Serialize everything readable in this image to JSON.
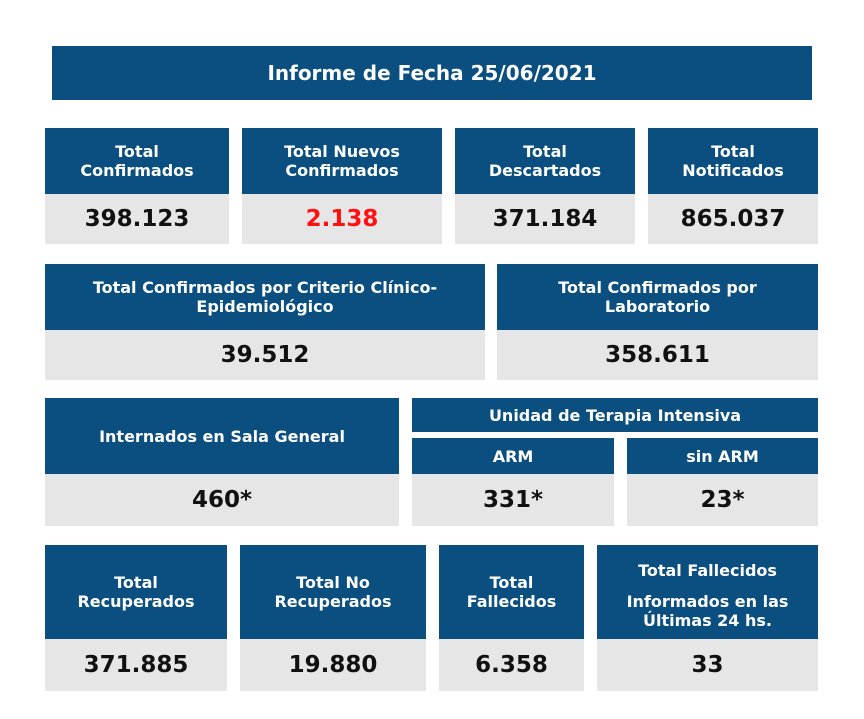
{
  "report_title": "Informe de Fecha 25/06/2021",
  "row1": [
    {
      "label_1": "Total",
      "label_2": "Confirmados",
      "value": "398.123"
    },
    {
      "label_1": "Total Nuevos",
      "label_2": "Confirmados",
      "value": "2.138",
      "value_color": "#ff1111"
    },
    {
      "label_1": "Total",
      "label_2": "Descartados",
      "value": "371.184"
    },
    {
      "label_1": "Total",
      "label_2": "Notificados",
      "value": "865.037"
    }
  ],
  "row2": [
    {
      "label_1": "Total Confirmados por Criterio Clínico-",
      "label_2": "Epidemiológico",
      "value": "39.512"
    },
    {
      "label_1": "Total Confirmados por",
      "label_2": "Laboratorio",
      "value": "358.611"
    }
  ],
  "row3": {
    "sala_general": {
      "label": "Internados en Sala General",
      "value": "460*"
    },
    "uti_title": "Unidad de Terapia Intensiva",
    "arm": {
      "label": "ARM",
      "value": "331*"
    },
    "sin_arm": {
      "label": "sin ARM",
      "value": "23*"
    }
  },
  "row4": [
    {
      "label_1": "Total",
      "label_2": "Recuperados",
      "value": "371.885"
    },
    {
      "label_1": "Total No",
      "label_2": "Recuperados",
      "value": "19.880"
    },
    {
      "label_1": "Total",
      "label_2": "Fallecidos",
      "value": "6.358"
    },
    {
      "label_1": "Total Fallecidos",
      "label_2": "Informados en las",
      "label_3": "Últimas 24 hs.",
      "value": "33"
    }
  ],
  "colors": {
    "header_bg": "#0b4f80",
    "value_bg": "#e6e6e6",
    "highlight": "#ff1111"
  }
}
